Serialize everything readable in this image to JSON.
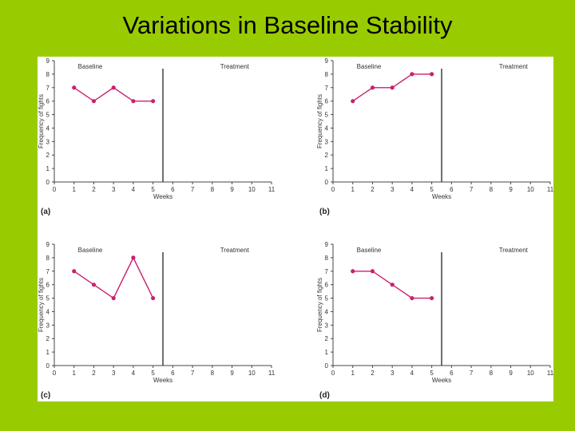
{
  "slide": {
    "title": "Variations in Baseline Stability",
    "accent_color": "#99cc00",
    "series_color": "#cc1f6e"
  },
  "chart_data": [
    {
      "type": "line",
      "panel_label": "(a)",
      "phase_labels": [
        "Baseline",
        "Treatment"
      ],
      "phase_change_x": 5.5,
      "x": [
        1,
        2,
        3,
        4,
        5
      ],
      "values": [
        7,
        6,
        7,
        6,
        6
      ],
      "xlabel": "Weeks",
      "ylabel": "Frequency of fights",
      "xlim": [
        0,
        11
      ],
      "ylim": [
        0,
        9
      ],
      "xticks": [
        "0",
        "1",
        "2",
        "3",
        "4",
        "5",
        "6",
        "7",
        "8",
        "9",
        "10",
        "11"
      ],
      "yticks": [
        "0",
        "1",
        "2",
        "3",
        "4",
        "5",
        "6",
        "7",
        "8",
        "9"
      ]
    },
    {
      "type": "line",
      "panel_label": "(b)",
      "phase_labels": [
        "Baseline",
        "Treatment"
      ],
      "phase_change_x": 5.5,
      "x": [
        1,
        2,
        3,
        4,
        5
      ],
      "values": [
        6,
        7,
        7,
        8,
        8
      ],
      "xlabel": "Weeks",
      "ylabel": "Frequency of fights",
      "xlim": [
        0,
        11
      ],
      "ylim": [
        0,
        9
      ],
      "xticks": [
        "0",
        "1",
        "2",
        "3",
        "4",
        "5",
        "6",
        "7",
        "8",
        "9",
        "10",
        "11"
      ],
      "yticks": [
        "0",
        "1",
        "2",
        "3",
        "4",
        "5",
        "6",
        "7",
        "8",
        "9"
      ]
    },
    {
      "type": "line",
      "panel_label": "(c)",
      "phase_labels": [
        "Baseline",
        "Treatment"
      ],
      "phase_change_x": 5.5,
      "x": [
        1,
        2,
        3,
        4,
        5
      ],
      "values": [
        7,
        6,
        5,
        8,
        5
      ],
      "xlabel": "Weeks",
      "ylabel": "Frequency of fights",
      "xlim": [
        0,
        11
      ],
      "ylim": [
        0,
        9
      ],
      "xticks": [
        "0",
        "1",
        "2",
        "3",
        "4",
        "5",
        "6",
        "7",
        "8",
        "9",
        "10",
        "11"
      ],
      "yticks": [
        "0",
        "1",
        "2",
        "3",
        "4",
        "5",
        "6",
        "7",
        "8",
        "9"
      ]
    },
    {
      "type": "line",
      "panel_label": "(d)",
      "phase_labels": [
        "Baseline",
        "Treatment"
      ],
      "phase_change_x": 5.5,
      "x": [
        1,
        2,
        3,
        4,
        5
      ],
      "values": [
        7,
        7,
        6,
        5,
        5
      ],
      "xlabel": "Weeks",
      "ylabel": "Frequency of fights",
      "xlim": [
        0,
        11
      ],
      "ylim": [
        0,
        9
      ],
      "xticks": [
        "0",
        "1",
        "2",
        "3",
        "4",
        "5",
        "6",
        "7",
        "8",
        "9",
        "10",
        "11"
      ],
      "yticks": [
        "0",
        "1",
        "2",
        "3",
        "4",
        "5",
        "6",
        "7",
        "8",
        "9"
      ]
    }
  ]
}
